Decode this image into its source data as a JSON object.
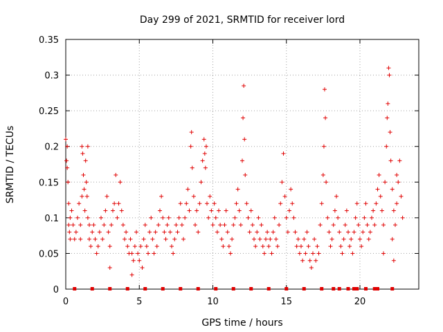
{
  "chart_data": {
    "type": "scatter",
    "title": "Day 299 of 2021, SRMTID for receiver lord",
    "xlabel": "GPS time / hours",
    "ylabel": "SRMTID / TECUs",
    "xlim": [
      0,
      24
    ],
    "ylim": [
      0,
      0.35
    ],
    "x_ticks": [
      0,
      5,
      10,
      15,
      20
    ],
    "x_tick_labels": [
      "0",
      "5",
      "10",
      "15",
      "20"
    ],
    "y_ticks": [
      0,
      0.05,
      0.1,
      0.15,
      0.2,
      0.25,
      0.3,
      0.35
    ],
    "y_tick_labels": [
      "0",
      "0.05",
      "0.1",
      "0.15",
      "0.2",
      "0.25",
      "0.3",
      "0.35"
    ],
    "grid": true,
    "marker": "+",
    "color": "#e00000",
    "series": [
      {
        "name": "SRMTID",
        "points": [
          [
            0.0,
            0.21
          ],
          [
            0.05,
            0.18
          ],
          [
            0.1,
            0.17
          ],
          [
            0.1,
            0.2
          ],
          [
            0.15,
            0.15
          ],
          [
            0.2,
            0.12
          ],
          [
            0.2,
            0.09
          ],
          [
            0.25,
            0.08
          ],
          [
            0.3,
            0.07
          ],
          [
            0.3,
            0.1
          ],
          [
            0.4,
            0.11
          ],
          [
            0.5,
            0.09
          ],
          [
            0.6,
            0.07
          ],
          [
            0.7,
            0.08
          ],
          [
            0.8,
            0.1
          ],
          [
            0.9,
            0.12
          ],
          [
            1.0,
            0.09
          ],
          [
            1.0,
            0.07
          ],
          [
            1.1,
            0.13
          ],
          [
            1.1,
            0.2
          ],
          [
            1.15,
            0.19
          ],
          [
            1.2,
            0.16
          ],
          [
            1.25,
            0.14
          ],
          [
            1.3,
            0.11
          ],
          [
            1.35,
            0.18
          ],
          [
            1.4,
            0.15
          ],
          [
            1.45,
            0.13
          ],
          [
            1.5,
            0.1
          ],
          [
            1.5,
            0.2
          ],
          [
            1.6,
            0.09
          ],
          [
            1.6,
            0.07
          ],
          [
            1.7,
            0.06
          ],
          [
            1.8,
            0.08
          ],
          [
            1.9,
            0.09
          ],
          [
            2.0,
            0.07
          ],
          [
            2.1,
            0.05
          ],
          [
            2.2,
            0.06
          ],
          [
            2.3,
            0.08
          ],
          [
            2.4,
            0.1
          ],
          [
            2.5,
            0.07
          ],
          [
            2.6,
            0.09
          ],
          [
            2.7,
            0.11
          ],
          [
            2.8,
            0.13
          ],
          [
            2.9,
            0.08
          ],
          [
            3.0,
            0.06
          ],
          [
            3.0,
            0.03
          ],
          [
            3.1,
            0.09
          ],
          [
            3.2,
            0.11
          ],
          [
            3.3,
            0.12
          ],
          [
            3.4,
            0.16
          ],
          [
            3.5,
            0.1
          ],
          [
            3.6,
            0.12
          ],
          [
            3.7,
            0.15
          ],
          [
            3.8,
            0.11
          ],
          [
            3.9,
            0.09
          ],
          [
            4.0,
            0.07
          ],
          [
            4.1,
            0.08
          ],
          [
            4.2,
            0.06
          ],
          [
            4.3,
            0.05
          ],
          [
            4.4,
            0.07
          ],
          [
            4.5,
            0.05
          ],
          [
            4.5,
            0.02
          ],
          [
            4.6,
            0.04
          ],
          [
            4.7,
            0.06
          ],
          [
            4.8,
            0.08
          ],
          [
            4.9,
            0.05
          ],
          [
            5.0,
            0.04
          ],
          [
            5.1,
            0.06
          ],
          [
            5.2,
            0.03
          ],
          [
            5.3,
            0.07
          ],
          [
            5.4,
            0.09
          ],
          [
            5.5,
            0.06
          ],
          [
            5.6,
            0.05
          ],
          [
            5.7,
            0.08
          ],
          [
            5.8,
            0.1
          ],
          [
            5.9,
            0.07
          ],
          [
            6.0,
            0.05
          ],
          [
            6.1,
            0.08
          ],
          [
            6.2,
            0.06
          ],
          [
            6.3,
            0.09
          ],
          [
            6.4,
            0.11
          ],
          [
            6.5,
            0.13
          ],
          [
            6.6,
            0.1
          ],
          [
            6.7,
            0.08
          ],
          [
            6.8,
            0.07
          ],
          [
            6.9,
            0.09
          ],
          [
            7.0,
            0.1
          ],
          [
            7.1,
            0.08
          ],
          [
            7.2,
            0.06
          ],
          [
            7.3,
            0.05
          ],
          [
            7.4,
            0.07
          ],
          [
            7.5,
            0.09
          ],
          [
            7.6,
            0.08
          ],
          [
            7.7,
            0.1
          ],
          [
            7.8,
            0.12
          ],
          [
            7.9,
            0.09
          ],
          [
            8.0,
            0.07
          ],
          [
            8.1,
            0.1
          ],
          [
            8.2,
            0.12
          ],
          [
            8.3,
            0.14
          ],
          [
            8.4,
            0.11
          ],
          [
            8.5,
            0.2
          ],
          [
            8.55,
            0.22
          ],
          [
            8.6,
            0.17
          ],
          [
            8.7,
            0.13
          ],
          [
            8.8,
            0.09
          ],
          [
            8.9,
            0.11
          ],
          [
            9.0,
            0.08
          ],
          [
            9.1,
            0.12
          ],
          [
            9.2,
            0.15
          ],
          [
            9.3,
            0.18
          ],
          [
            9.4,
            0.21
          ],
          [
            9.45,
            0.19
          ],
          [
            9.5,
            0.17
          ],
          [
            9.55,
            0.2
          ],
          [
            9.6,
            0.12
          ],
          [
            9.7,
            0.1
          ],
          [
            9.8,
            0.13
          ],
          [
            9.9,
            0.11
          ],
          [
            10.0,
            0.09
          ],
          [
            10.1,
            0.12
          ],
          [
            10.2,
            0.1
          ],
          [
            10.3,
            0.08
          ],
          [
            10.4,
            0.11
          ],
          [
            10.5,
            0.09
          ],
          [
            10.6,
            0.07
          ],
          [
            10.7,
            0.06
          ],
          [
            10.8,
            0.09
          ],
          [
            10.9,
            0.11
          ],
          [
            11.0,
            0.08
          ],
          [
            11.1,
            0.06
          ],
          [
            11.2,
            0.05
          ],
          [
            11.3,
            0.07
          ],
          [
            11.4,
            0.09
          ],
          [
            11.5,
            0.1
          ],
          [
            11.6,
            0.12
          ],
          [
            11.7,
            0.14
          ],
          [
            11.8,
            0.11
          ],
          [
            11.9,
            0.09
          ],
          [
            12.0,
            0.18
          ],
          [
            12.05,
            0.24
          ],
          [
            12.1,
            0.285
          ],
          [
            12.15,
            0.21
          ],
          [
            12.2,
            0.16
          ],
          [
            12.3,
            0.12
          ],
          [
            12.4,
            0.1
          ],
          [
            12.5,
            0.08
          ],
          [
            12.6,
            0.11
          ],
          [
            12.7,
            0.09
          ],
          [
            12.8,
            0.07
          ],
          [
            12.9,
            0.06
          ],
          [
            13.0,
            0.08
          ],
          [
            13.1,
            0.1
          ],
          [
            13.2,
            0.07
          ],
          [
            13.3,
            0.09
          ],
          [
            13.4,
            0.06
          ],
          [
            13.5,
            0.05
          ],
          [
            13.6,
            0.07
          ],
          [
            13.7,
            0.08
          ],
          [
            13.8,
            0.06
          ],
          [
            13.9,
            0.07
          ],
          [
            14.0,
            0.05
          ],
          [
            14.1,
            0.08
          ],
          [
            14.2,
            0.1
          ],
          [
            14.3,
            0.07
          ],
          [
            14.4,
            0.06
          ],
          [
            14.5,
            0.09
          ],
          [
            14.6,
            0.12
          ],
          [
            14.7,
            0.15
          ],
          [
            14.8,
            0.19
          ],
          [
            14.9,
            0.13
          ],
          [
            15.0,
            0.1
          ],
          [
            15.1,
            0.08
          ],
          [
            15.2,
            0.11
          ],
          [
            15.3,
            0.14
          ],
          [
            15.4,
            0.12
          ],
          [
            15.5,
            0.1
          ],
          [
            15.6,
            0.08
          ],
          [
            15.7,
            0.06
          ],
          [
            15.8,
            0.07
          ],
          [
            15.9,
            0.05
          ],
          [
            16.0,
            0.06
          ],
          [
            16.1,
            0.04
          ],
          [
            16.2,
            0.07
          ],
          [
            16.3,
            0.05
          ],
          [
            16.4,
            0.08
          ],
          [
            16.5,
            0.06
          ],
          [
            16.6,
            0.04
          ],
          [
            16.7,
            0.03
          ],
          [
            16.8,
            0.05
          ],
          [
            16.9,
            0.07
          ],
          [
            17.0,
            0.04
          ],
          [
            17.1,
            0.06
          ],
          [
            17.2,
            0.05
          ],
          [
            17.3,
            0.09
          ],
          [
            17.4,
            0.12
          ],
          [
            17.5,
            0.16
          ],
          [
            17.55,
            0.2
          ],
          [
            17.6,
            0.28
          ],
          [
            17.65,
            0.24
          ],
          [
            17.7,
            0.15
          ],
          [
            17.8,
            0.1
          ],
          [
            17.9,
            0.08
          ],
          [
            18.0,
            0.06
          ],
          [
            18.1,
            0.07
          ],
          [
            18.2,
            0.09
          ],
          [
            18.3,
            0.11
          ],
          [
            18.4,
            0.13
          ],
          [
            18.5,
            0.1
          ],
          [
            18.6,
            0.08
          ],
          [
            18.7,
            0.06
          ],
          [
            18.8,
            0.05
          ],
          [
            18.9,
            0.07
          ],
          [
            19.0,
            0.09
          ],
          [
            19.1,
            0.11
          ],
          [
            19.2,
            0.08
          ],
          [
            19.3,
            0.06
          ],
          [
            19.4,
            0.07
          ],
          [
            19.5,
            0.05
          ],
          [
            19.6,
            0.08
          ],
          [
            19.7,
            0.1
          ],
          [
            19.8,
            0.12
          ],
          [
            19.9,
            0.09
          ],
          [
            20.0,
            0.07
          ],
          [
            20.1,
            0.06
          ],
          [
            20.2,
            0.08
          ],
          [
            20.3,
            0.1
          ],
          [
            20.4,
            0.12
          ],
          [
            20.5,
            0.09
          ],
          [
            20.6,
            0.07
          ],
          [
            20.7,
            0.08
          ],
          [
            20.8,
            0.1
          ],
          [
            20.9,
            0.11
          ],
          [
            21.0,
            0.09
          ],
          [
            21.1,
            0.12
          ],
          [
            21.2,
            0.14
          ],
          [
            21.3,
            0.16
          ],
          [
            21.4,
            0.13
          ],
          [
            21.5,
            0.11
          ],
          [
            21.6,
            0.09
          ],
          [
            21.7,
            0.15
          ],
          [
            21.8,
            0.2
          ],
          [
            21.85,
            0.24
          ],
          [
            21.9,
            0.26
          ],
          [
            21.95,
            0.31
          ],
          [
            22.0,
            0.3
          ],
          [
            22.05,
            0.22
          ],
          [
            22.1,
            0.18
          ],
          [
            22.2,
            0.14
          ],
          [
            22.3,
            0.11
          ],
          [
            22.4,
            0.09
          ],
          [
            22.5,
            0.12
          ],
          [
            22.6,
            0.15
          ],
          [
            22.7,
            0.18
          ],
          [
            22.8,
            0.13
          ],
          [
            22.9,
            0.1
          ],
          [
            22.2,
            0.07
          ],
          [
            22.3,
            0.04
          ],
          [
            21.6,
            0.05
          ],
          [
            22.5,
            0.16
          ]
        ]
      }
    ],
    "baseline_markers": [
      0.6,
      1.8,
      3.0,
      4.2,
      5.4,
      6.6,
      7.8,
      9.0,
      10.2,
      11.4,
      12.6,
      13.8,
      15.0,
      16.2,
      17.4,
      18.2,
      18.6,
      19.2,
      19.6,
      19.8,
      20.4,
      21.0,
      21.1,
      21.2,
      22.2
    ]
  }
}
